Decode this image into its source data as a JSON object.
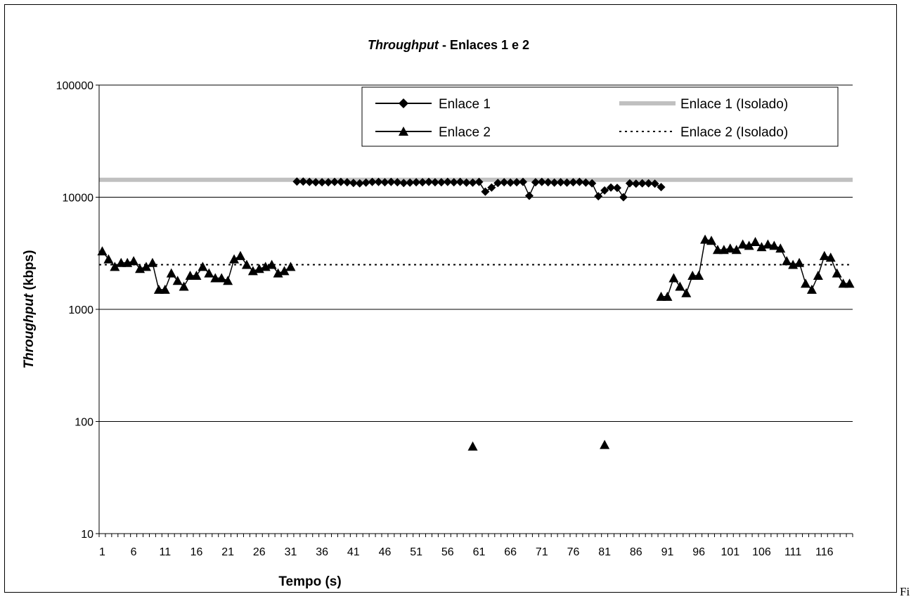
{
  "trailing_text": "Fi",
  "chart_data": {
    "type": "line",
    "title_italic": "Throughput",
    "title_rest": " - Enlaces 1 e 2",
    "xlabel": "Tempo (s)",
    "ylabel_italic": "Throughput",
    "ylabel_rest": " (kbps)",
    "yscale": "log",
    "ylim": [
      10,
      100000
    ],
    "y_ticks": [
      "10",
      "100",
      "1000",
      "10000",
      "100000"
    ],
    "xlim": [
      1,
      120
    ],
    "x_tick_labels": [
      "1",
      "6",
      "11",
      "16",
      "21",
      "26",
      "31",
      "36",
      "41",
      "46",
      "51",
      "56",
      "61",
      "66",
      "71",
      "76",
      "81",
      "86",
      "91",
      "96",
      "101",
      "106",
      "111",
      "116"
    ],
    "grid": true,
    "legend_position": "top-right",
    "legend": [
      "Enlace 1",
      "Enlace 1 (Isolado)",
      "Enlace 2",
      "Enlace 2 (Isolado)"
    ],
    "series": [
      {
        "name": "Enlace 1",
        "marker": "diamond",
        "color": "#000000",
        "x_start": 32,
        "values": [
          13800,
          13800,
          13700,
          13600,
          13600,
          13600,
          13700,
          13700,
          13600,
          13400,
          13300,
          13500,
          13700,
          13700,
          13600,
          13700,
          13600,
          13400,
          13500,
          13600,
          13600,
          13700,
          13600,
          13600,
          13700,
          13600,
          13700,
          13500,
          13500,
          13700,
          11200,
          12200,
          13400,
          13600,
          13500,
          13600,
          13700,
          10300,
          13600,
          13700,
          13600,
          13500,
          13600,
          13500,
          13600,
          13700,
          13500,
          13300,
          10200,
          11500,
          12200,
          12100,
          10000,
          13300,
          13200,
          13300,
          13300,
          13200,
          12300
        ]
      },
      {
        "name": "Enlace 2",
        "marker": "triangle",
        "color": "#000000",
        "x": [
          1,
          2,
          3,
          4,
          5,
          6,
          7,
          8,
          9,
          10,
          11,
          12,
          13,
          14,
          15,
          16,
          17,
          18,
          19,
          20,
          21,
          22,
          23,
          24,
          25,
          26,
          27,
          28,
          29,
          30,
          31,
          60,
          81,
          90,
          91,
          92,
          93,
          94,
          95,
          96,
          97,
          98,
          99,
          100,
          101,
          102,
          103,
          104,
          105,
          106,
          107,
          108,
          109,
          110,
          111,
          112,
          113,
          114,
          115,
          116,
          117,
          118,
          119,
          120
        ],
        "values": [
          3300,
          2800,
          2400,
          2600,
          2600,
          2700,
          2300,
          2400,
          2600,
          1500,
          1500,
          2100,
          1800,
          1600,
          2000,
          2000,
          2400,
          2100,
          1900,
          1900,
          1800,
          2800,
          3000,
          2500,
          2200,
          2300,
          2400,
          2500,
          2100,
          2200,
          2400,
          60,
          62,
          1300,
          1300,
          1900,
          1600,
          1400,
          2000,
          2000,
          4200,
          4100,
          3400,
          3400,
          3500,
          3400,
          3800,
          3700,
          4000,
          3600,
          3800,
          3700,
          3500,
          2700,
          2500,
          2600,
          1700,
          1500,
          2000,
          3000,
          2900,
          2100,
          1700,
          1700
        ],
        "gaps_after_x": [
          31,
          60,
          81
        ]
      },
      {
        "name": "Enlace 1 (Isolado)",
        "style": "solid-thick",
        "color": "#c0c0c0",
        "constant_value": 14300
      },
      {
        "name": "Enlace 2 (Isolado)",
        "style": "dotted",
        "color": "#000000",
        "constant_value": 2500
      }
    ]
  }
}
